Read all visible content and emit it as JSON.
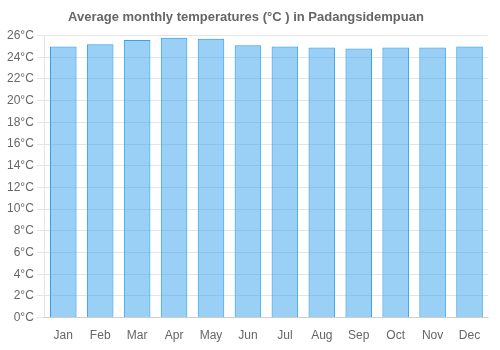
{
  "chart_data": {
    "type": "bar",
    "title": "Average monthly temperatures (°C ) in Padangsidempuan",
    "categories": [
      "Jan",
      "Feb",
      "Mar",
      "Apr",
      "May",
      "Jun",
      "Jul",
      "Aug",
      "Sep",
      "Oct",
      "Nov",
      "Dec"
    ],
    "values": [
      25.0,
      25.2,
      25.6,
      25.8,
      25.7,
      25.1,
      25.0,
      24.9,
      24.8,
      24.9,
      24.9,
      25.0
    ],
    "ylim": [
      0,
      26
    ],
    "yticks": [
      {
        "value": 0,
        "label": "0°C"
      },
      {
        "value": 2,
        "label": "2°C"
      },
      {
        "value": 4,
        "label": "4°C"
      },
      {
        "value": 6,
        "label": "6°C"
      },
      {
        "value": 8,
        "label": "8°C"
      },
      {
        "value": 10,
        "label": "10°C"
      },
      {
        "value": 12,
        "label": "12°C"
      },
      {
        "value": 14,
        "label": "14°C"
      },
      {
        "value": 16,
        "label": "16°C"
      },
      {
        "value": 18,
        "label": "18°C"
      },
      {
        "value": 20,
        "label": "20°C"
      },
      {
        "value": 22,
        "label": "22°C"
      },
      {
        "value": 24,
        "label": "24°C"
      },
      {
        "value": 26,
        "label": "26°C"
      }
    ],
    "grid": true
  }
}
